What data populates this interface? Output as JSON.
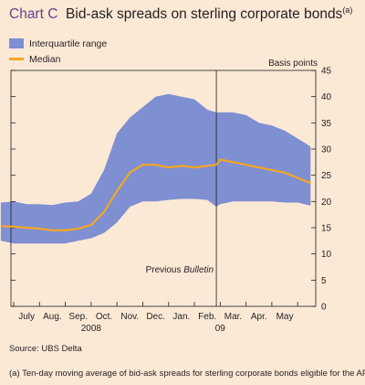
{
  "header": {
    "label": "Chart C",
    "title": "Bid-ask spreads on sterling corporate bonds",
    "note_marker": "(a)"
  },
  "legend": {
    "band": "Interquartile range",
    "line": "Median"
  },
  "source": "Source:  UBS Delta",
  "footnote": "(a)  Ten-day moving average of bid-ask spreads for sterling corporate bonds eligible for the APF.",
  "colors": {
    "background": "#fbe9d6",
    "band": "#7e8fd2",
    "median": "#f5a623",
    "title_label": "#6a3f86",
    "axis": "#231f20"
  },
  "chart_data": {
    "type": "area",
    "title": "Bid-ask spreads on sterling corporate bonds",
    "ylabel": "Basis points",
    "ylim": [
      0,
      45
    ],
    "y_ticks": [
      0,
      5,
      10,
      15,
      20,
      25,
      30,
      35,
      40,
      45
    ],
    "xlim": [
      0,
      11.7
    ],
    "x_ticks": [
      0,
      1,
      2,
      3,
      4,
      5,
      6,
      7,
      8,
      9,
      10,
      11
    ],
    "month_labels": [
      {
        "label": "July",
        "x": 0.5
      },
      {
        "label": "Aug.",
        "x": 1.5
      },
      {
        "label": "Sep.",
        "x": 2.5
      },
      {
        "label": "Oct.",
        "x": 3.5
      },
      {
        "label": "Nov.",
        "x": 4.5
      },
      {
        "label": "Dec.",
        "x": 5.5
      },
      {
        "label": "Jan.",
        "x": 6.5
      },
      {
        "label": "Feb.",
        "x": 7.5
      },
      {
        "label": "Mar.",
        "x": 8.5
      },
      {
        "label": "Apr.",
        "x": 9.5
      },
      {
        "label": "May",
        "x": 10.5
      }
    ],
    "year_labels": [
      {
        "label": "2008",
        "x": 3.0
      },
      {
        "label": "09",
        "x": 8.0
      }
    ],
    "annotation": {
      "x": 7.85,
      "prefix": "Previous ",
      "emph": "Bulletin",
      "y": 7
    },
    "x": [
      -0.5,
      0,
      0.5,
      1,
      1.5,
      2,
      2.5,
      3,
      3.5,
      4,
      4.5,
      5,
      5.5,
      6,
      6.5,
      7,
      7.5,
      7.85,
      8,
      8.5,
      9,
      9.5,
      10,
      10.5,
      11,
      11.5
    ],
    "series": [
      {
        "name": "Interquartile range upper",
        "values": [
          19.8,
          20.0,
          19.5,
          19.5,
          19.3,
          19.8,
          20.0,
          21.5,
          26.0,
          33.0,
          36.0,
          38.0,
          40.0,
          40.5,
          40.0,
          39.5,
          37.5,
          37.0,
          37.0,
          37.0,
          36.5,
          35.0,
          34.5,
          33.5,
          32.0,
          30.5
        ]
      },
      {
        "name": "Median",
        "values": [
          15.3,
          15.2,
          15.0,
          14.8,
          14.5,
          14.5,
          14.8,
          15.5,
          18.0,
          22.0,
          25.5,
          27.0,
          27.0,
          26.5,
          26.8,
          26.5,
          26.8,
          27.0,
          28.0,
          27.5,
          27.0,
          26.5,
          26.0,
          25.5,
          24.5,
          23.5
        ]
      },
      {
        "name": "Interquartile range lower",
        "values": [
          12.5,
          12.0,
          12.0,
          12.0,
          12.0,
          12.0,
          12.5,
          13.0,
          14.0,
          16.0,
          19.0,
          20.0,
          20.0,
          20.3,
          20.5,
          20.5,
          20.3,
          19.0,
          19.5,
          20.0,
          20.0,
          20.0,
          20.0,
          19.8,
          19.8,
          19.2
        ]
      }
    ]
  }
}
